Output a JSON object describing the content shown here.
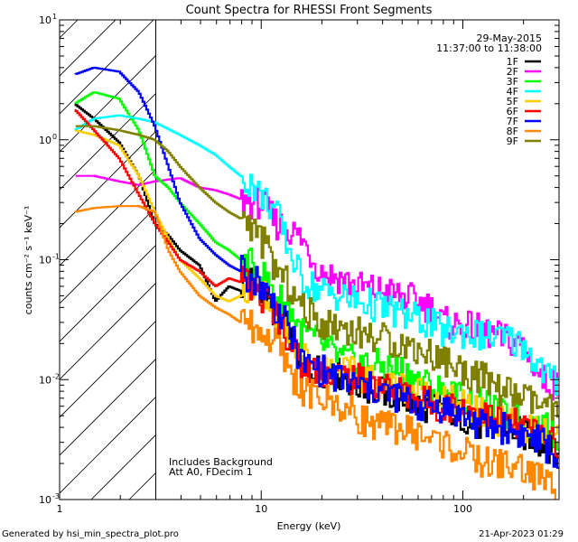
{
  "chart_data": {
    "type": "line",
    "title": "Count Spectra for RHESSI Front Segments",
    "xlabel": "Energy (keV)",
    "ylabel": "counts cm⁻² s⁻¹ keV⁻¹",
    "xscale": "log",
    "yscale": "log",
    "xlim": [
      1,
      300
    ],
    "ylim": [
      0.001,
      10
    ],
    "x_ticks": [
      {
        "value": 1,
        "label": "1"
      },
      {
        "value": 10,
        "label": "10"
      },
      {
        "value": 100,
        "label": "100"
      }
    ],
    "y_ticks": [
      {
        "value": 10,
        "label": "10",
        "exp": "1"
      },
      {
        "value": 1,
        "label": "10",
        "exp": "0"
      },
      {
        "value": 0.1,
        "label": "10",
        "exp": "-1"
      },
      {
        "value": 0.01,
        "label": "10",
        "exp": "-2"
      },
      {
        "value": 0.001,
        "label": "10",
        "exp": "-3"
      }
    ],
    "date": "29-May-2015",
    "time_range": "11:37:00 to 11:38:00",
    "threshold_keV": 3,
    "notes": [
      "Includes Background",
      "Att A0, FDecim 1"
    ],
    "series": [
      {
        "name": "1F",
        "color": "#000000",
        "points": [
          [
            1.2,
            2.0
          ],
          [
            1.5,
            1.5
          ],
          [
            2,
            0.95
          ],
          [
            2.5,
            0.5
          ],
          [
            3,
            0.2
          ],
          [
            3.5,
            0.16
          ],
          [
            4,
            0.12
          ],
          [
            5,
            0.09
          ],
          [
            6,
            0.045
          ],
          [
            7,
            0.06
          ],
          [
            8,
            0.055
          ],
          [
            9,
            0.07
          ],
          [
            10,
            0.06
          ],
          [
            11,
            0.045
          ],
          [
            12,
            0.035
          ],
          [
            14,
            0.025
          ],
          [
            16,
            0.013
          ],
          [
            20,
            0.012
          ],
          [
            25,
            0.011
          ],
          [
            30,
            0.009
          ],
          [
            40,
            0.008
          ],
          [
            50,
            0.007
          ],
          [
            60,
            0.006
          ],
          [
            80,
            0.006
          ],
          [
            100,
            0.005
          ],
          [
            130,
            0.004
          ],
          [
            160,
            0.0042
          ],
          [
            200,
            0.0035
          ],
          [
            250,
            0.003
          ],
          [
            300,
            0.0025
          ]
        ]
      },
      {
        "name": "2F",
        "color": "#ff00ff",
        "points": [
          [
            1.2,
            0.5
          ],
          [
            1.5,
            0.5
          ],
          [
            2,
            0.45
          ],
          [
            2.5,
            0.42
          ],
          [
            3,
            0.45
          ],
          [
            4,
            0.48
          ],
          [
            5,
            0.4
          ],
          [
            6,
            0.38
          ],
          [
            7,
            0.35
          ],
          [
            8,
            0.32
          ],
          [
            9,
            0.3
          ],
          [
            10,
            0.3
          ],
          [
            11,
            0.25
          ],
          [
            12,
            0.2
          ],
          [
            14,
            0.18
          ],
          [
            16,
            0.15
          ],
          [
            20,
            0.08
          ],
          [
            25,
            0.07
          ],
          [
            30,
            0.06
          ],
          [
            40,
            0.055
          ],
          [
            50,
            0.05
          ],
          [
            60,
            0.045
          ],
          [
            70,
            0.04
          ],
          [
            80,
            0.03
          ],
          [
            100,
            0.028
          ],
          [
            130,
            0.025
          ],
          [
            160,
            0.022
          ],
          [
            200,
            0.02
          ],
          [
            250,
            0.01
          ],
          [
            300,
            0.009
          ]
        ]
      },
      {
        "name": "3F",
        "color": "#00ff00",
        "points": [
          [
            1.2,
            2.0
          ],
          [
            1.5,
            2.5
          ],
          [
            2,
            2.2
          ],
          [
            2.5,
            1.2
          ],
          [
            3,
            0.5
          ],
          [
            3.5,
            0.4
          ],
          [
            4,
            0.3
          ],
          [
            5,
            0.2
          ],
          [
            6,
            0.14
          ],
          [
            7,
            0.12
          ],
          [
            8,
            0.1
          ],
          [
            9,
            0.09
          ],
          [
            10,
            0.08
          ],
          [
            11,
            0.065
          ],
          [
            12,
            0.05
          ],
          [
            14,
            0.04
          ],
          [
            16,
            0.025
          ],
          [
            20,
            0.02
          ],
          [
            25,
            0.015
          ],
          [
            30,
            0.014
          ],
          [
            40,
            0.013
          ],
          [
            50,
            0.012
          ],
          [
            60,
            0.01
          ],
          [
            80,
            0.008
          ],
          [
            100,
            0.007
          ],
          [
            130,
            0.006
          ],
          [
            160,
            0.005
          ],
          [
            200,
            0.0045
          ],
          [
            250,
            0.004
          ],
          [
            300,
            0.0035
          ]
        ]
      },
      {
        "name": "4F",
        "color": "#00ffff",
        "points": [
          [
            1.2,
            1.2
          ],
          [
            1.5,
            1.5
          ],
          [
            2,
            1.6
          ],
          [
            2.5,
            1.5
          ],
          [
            3,
            1.4
          ],
          [
            4,
            1.1
          ],
          [
            5,
            0.9
          ],
          [
            6,
            0.75
          ],
          [
            7,
            0.6
          ],
          [
            8,
            0.5
          ],
          [
            9,
            0.45
          ],
          [
            10,
            0.35
          ],
          [
            11,
            0.3
          ],
          [
            12,
            0.25
          ],
          [
            14,
            0.12
          ],
          [
            16,
            0.07
          ],
          [
            20,
            0.055
          ],
          [
            25,
            0.05
          ],
          [
            30,
            0.045
          ],
          [
            40,
            0.04
          ],
          [
            50,
            0.035
          ],
          [
            60,
            0.032
          ],
          [
            70,
            0.03
          ],
          [
            80,
            0.025
          ],
          [
            100,
            0.025
          ],
          [
            130,
            0.023
          ],
          [
            160,
            0.022
          ],
          [
            200,
            0.02
          ],
          [
            250,
            0.012
          ],
          [
            300,
            0.009
          ]
        ]
      },
      {
        "name": "5F",
        "color": "#ffcc00",
        "points": [
          [
            1.2,
            1.2
          ],
          [
            1.5,
            1.1
          ],
          [
            2,
            0.9
          ],
          [
            2.5,
            0.5
          ],
          [
            3,
            0.25
          ],
          [
            3.5,
            0.15
          ],
          [
            4,
            0.1
          ],
          [
            5,
            0.07
          ],
          [
            6,
            0.05
          ],
          [
            7,
            0.045
          ],
          [
            8,
            0.05
          ],
          [
            9,
            0.06
          ],
          [
            10,
            0.055
          ],
          [
            11,
            0.045
          ],
          [
            12,
            0.035
          ],
          [
            14,
            0.025
          ],
          [
            16,
            0.016
          ],
          [
            20,
            0.013
          ],
          [
            25,
            0.012
          ],
          [
            30,
            0.011
          ],
          [
            40,
            0.009
          ],
          [
            50,
            0.009
          ],
          [
            60,
            0.008
          ],
          [
            80,
            0.007
          ],
          [
            100,
            0.006
          ],
          [
            130,
            0.005
          ],
          [
            160,
            0.0045
          ],
          [
            200,
            0.004
          ],
          [
            250,
            0.0035
          ],
          [
            300,
            0.003
          ]
        ]
      },
      {
        "name": "6F",
        "color": "#ff0000",
        "points": [
          [
            1.2,
            1.8
          ],
          [
            1.5,
            1.2
          ],
          [
            2,
            0.7
          ],
          [
            2.5,
            0.35
          ],
          [
            3,
            0.2
          ],
          [
            3.5,
            0.14
          ],
          [
            4,
            0.1
          ],
          [
            5,
            0.08
          ],
          [
            6,
            0.06
          ],
          [
            7,
            0.07
          ],
          [
            8,
            0.065
          ],
          [
            9,
            0.06
          ],
          [
            10,
            0.05
          ],
          [
            11,
            0.045
          ],
          [
            12,
            0.035
          ],
          [
            14,
            0.022
          ],
          [
            16,
            0.013
          ],
          [
            20,
            0.012
          ],
          [
            25,
            0.011
          ],
          [
            30,
            0.01
          ],
          [
            40,
            0.009
          ],
          [
            50,
            0.008
          ],
          [
            60,
            0.007
          ],
          [
            80,
            0.006
          ],
          [
            100,
            0.006
          ],
          [
            130,
            0.005
          ],
          [
            160,
            0.0045
          ],
          [
            200,
            0.004
          ],
          [
            250,
            0.0035
          ],
          [
            300,
            0.003
          ]
        ]
      },
      {
        "name": "7F",
        "color": "#0000ff",
        "points": [
          [
            1.2,
            3.5
          ],
          [
            1.5,
            4.0
          ],
          [
            2,
            3.7
          ],
          [
            2.5,
            2.5
          ],
          [
            3,
            1.3
          ],
          [
            3.5,
            0.6
          ],
          [
            4,
            0.3
          ],
          [
            5,
            0.15
          ],
          [
            6,
            0.11
          ],
          [
            7,
            0.09
          ],
          [
            8,
            0.08
          ],
          [
            9,
            0.07
          ],
          [
            10,
            0.065
          ],
          [
            11,
            0.05
          ],
          [
            12,
            0.04
          ],
          [
            14,
            0.025
          ],
          [
            16,
            0.014
          ],
          [
            20,
            0.012
          ],
          [
            25,
            0.01
          ],
          [
            30,
            0.009
          ],
          [
            40,
            0.008
          ],
          [
            50,
            0.007
          ],
          [
            60,
            0.006
          ],
          [
            80,
            0.006
          ],
          [
            100,
            0.005
          ],
          [
            130,
            0.004
          ],
          [
            160,
            0.004
          ],
          [
            200,
            0.0035
          ],
          [
            250,
            0.003
          ],
          [
            300,
            0.0022
          ]
        ]
      },
      {
        "name": "8F",
        "color": "#ff8800",
        "points": [
          [
            1.2,
            0.25
          ],
          [
            1.5,
            0.27
          ],
          [
            2,
            0.28
          ],
          [
            2.5,
            0.28
          ],
          [
            3,
            0.25
          ],
          [
            3.5,
            0.12
          ],
          [
            4,
            0.08
          ],
          [
            5,
            0.05
          ],
          [
            6,
            0.04
          ],
          [
            7,
            0.035
          ],
          [
            8,
            0.03
          ],
          [
            9,
            0.028
          ],
          [
            10,
            0.025
          ],
          [
            11,
            0.022
          ],
          [
            12,
            0.02
          ],
          [
            14,
            0.012
          ],
          [
            16,
            0.008
          ],
          [
            20,
            0.007
          ],
          [
            25,
            0.006
          ],
          [
            30,
            0.005
          ],
          [
            40,
            0.004
          ],
          [
            50,
            0.004
          ],
          [
            60,
            0.0035
          ],
          [
            80,
            0.003
          ],
          [
            100,
            0.0025
          ],
          [
            130,
            0.002
          ],
          [
            160,
            0.002
          ],
          [
            200,
            0.0018
          ],
          [
            250,
            0.0015
          ],
          [
            300,
            0.0012
          ]
        ]
      },
      {
        "name": "9F",
        "color": "#808000",
        "points": [
          [
            1.2,
            1.3
          ],
          [
            1.5,
            1.3
          ],
          [
            2,
            1.2
          ],
          [
            2.5,
            1.1
          ],
          [
            3,
            1.0
          ],
          [
            3.5,
            0.8
          ],
          [
            4,
            0.6
          ],
          [
            5,
            0.4
          ],
          [
            6,
            0.3
          ],
          [
            7,
            0.25
          ],
          [
            8,
            0.22
          ],
          [
            9,
            0.2
          ],
          [
            10,
            0.15
          ],
          [
            11,
            0.12
          ],
          [
            12,
            0.08
          ],
          [
            14,
            0.06
          ],
          [
            16,
            0.04
          ],
          [
            20,
            0.03
          ],
          [
            25,
            0.028
          ],
          [
            30,
            0.025
          ],
          [
            40,
            0.022
          ],
          [
            50,
            0.02
          ],
          [
            60,
            0.018
          ],
          [
            80,
            0.015
          ],
          [
            100,
            0.012
          ],
          [
            130,
            0.01
          ],
          [
            160,
            0.008
          ],
          [
            200,
            0.007
          ],
          [
            250,
            0.006
          ],
          [
            300,
            0.005
          ]
        ]
      }
    ]
  },
  "footer": {
    "generated_by": "Generated by hsi_min_spectra_plot.pro",
    "timestamp": "21-Apr-2023 01:29"
  }
}
